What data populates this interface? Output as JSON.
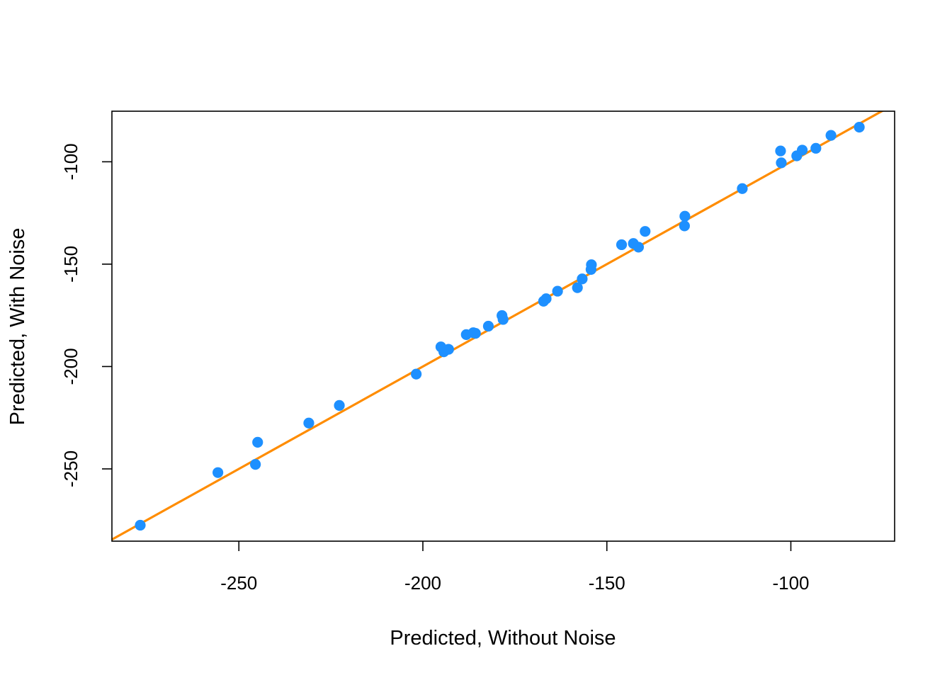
{
  "chart_data": {
    "type": "scatter",
    "title": "",
    "xlabel": "Predicted, Without Noise",
    "ylabel": "Predicted, With Noise",
    "xlim": [
      -284.5,
      -71.8
    ],
    "ylim": [
      -285.3,
      -75.3
    ],
    "x_ticks": [
      -250,
      -200,
      -150,
      -100
    ],
    "y_ticks": [
      -250,
      -200,
      -150,
      -100
    ],
    "x_tick_labels": [
      "-250",
      "-200",
      "-150",
      "-100"
    ],
    "y_tick_labels": [
      "-250",
      "-200",
      "-150",
      "-100"
    ],
    "grid": false,
    "legend": "none",
    "point_color": "#1E90FF",
    "line_color": "#FF8C00",
    "fit_line": {
      "intercept": 0,
      "slope": 1
    },
    "points": [
      {
        "x": -276.8,
        "y": -277.5
      },
      {
        "x": -255.7,
        "y": -251.8
      },
      {
        "x": -245.5,
        "y": -247.8
      },
      {
        "x": -244.9,
        "y": -237.0
      },
      {
        "x": -231.0,
        "y": -227.6
      },
      {
        "x": -222.7,
        "y": -219.0
      },
      {
        "x": -201.8,
        "y": -203.7
      },
      {
        "x": -195.1,
        "y": -190.4
      },
      {
        "x": -194.3,
        "y": -192.8
      },
      {
        "x": -193.0,
        "y": -191.6
      },
      {
        "x": -188.2,
        "y": -184.4
      },
      {
        "x": -186.3,
        "y": -183.5
      },
      {
        "x": -185.7,
        "y": -183.8
      },
      {
        "x": -182.2,
        "y": -180.3
      },
      {
        "x": -178.5,
        "y": -175.1
      },
      {
        "x": -178.2,
        "y": -177.0
      },
      {
        "x": -167.2,
        "y": -168.1
      },
      {
        "x": -166.5,
        "y": -166.9
      },
      {
        "x": -163.4,
        "y": -163.2
      },
      {
        "x": -158.0,
        "y": -161.5
      },
      {
        "x": -156.7,
        "y": -157.2
      },
      {
        "x": -154.2,
        "y": -150.3
      },
      {
        "x": -154.3,
        "y": -152.6
      },
      {
        "x": -146.0,
        "y": -140.5
      },
      {
        "x": -142.8,
        "y": -139.9
      },
      {
        "x": -141.4,
        "y": -141.7
      },
      {
        "x": -139.6,
        "y": -134.0
      },
      {
        "x": -128.8,
        "y": -126.6
      },
      {
        "x": -128.9,
        "y": -131.3
      },
      {
        "x": -113.2,
        "y": -113.1
      },
      {
        "x": -102.8,
        "y": -94.7
      },
      {
        "x": -102.6,
        "y": -100.5
      },
      {
        "x": -98.4,
        "y": -97.1
      },
      {
        "x": -96.9,
        "y": -94.3
      },
      {
        "x": -93.2,
        "y": -93.4
      },
      {
        "x": -89.1,
        "y": -87.1
      },
      {
        "x": -81.4,
        "y": -83.1
      }
    ]
  }
}
